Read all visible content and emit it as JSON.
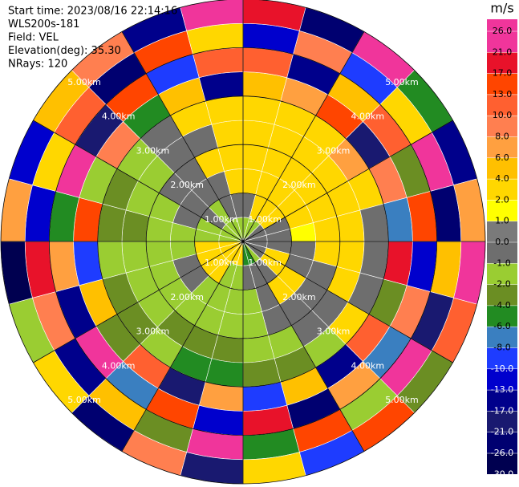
{
  "chart_data": {
    "type": "ppi",
    "info_lines": [
      "Start time: 2023/08/16 22:14:16",
      "WLS200s-181",
      "Field: VEL",
      "Elevation(deg): 35.30",
      "NRays: 120"
    ],
    "rlim": [
      0,
      5
    ],
    "range_rings": [
      {
        "value": 1,
        "label": "1.00km"
      },
      {
        "value": 2,
        "label": "2.00km"
      },
      {
        "value": 3,
        "label": "3.00km"
      },
      {
        "value": 4,
        "label": "4.00km"
      },
      {
        "value": 5,
        "label": "5.00km"
      }
    ],
    "spoke_azimuths": [
      0,
      30,
      60,
      90,
      120,
      150,
      180,
      210,
      240,
      270,
      300,
      330
    ],
    "azimuth_bins": [
      0,
      15,
      30,
      45,
      60,
      75,
      90,
      105,
      120,
      135,
      150,
      165,
      180,
      195,
      210,
      225,
      240,
      255,
      270,
      285,
      300,
      315,
      330,
      345,
      360
    ],
    "range_bins": [
      0,
      0.5,
      1,
      1.5,
      2,
      2.5,
      3,
      3.5,
      4,
      4.5,
      5
    ],
    "values": [
      [
        -1.5,
        -0.5,
        3,
        3,
        3,
        2.5,
        5,
        12,
        -12,
        20
      ],
      [
        -1.5,
        3,
        3,
        3,
        3,
        3,
        7,
        -15,
        9,
        -22
      ],
      [
        -1.5,
        3,
        3,
        3,
        3,
        2.5,
        15,
        5,
        -9,
        25
      ],
      [
        -0.5,
        3,
        3,
        3,
        3,
        6,
        -18,
        11,
        3,
        -5
      ],
      [
        -0.5,
        -0.5,
        3,
        3,
        3,
        3,
        9,
        -3,
        23,
        -14
      ],
      [
        -0.5,
        -0.5,
        1.5,
        3,
        3,
        -0.5,
        -7,
        14,
        -24,
        7
      ],
      [
        -0.5,
        -0.5,
        -0.5,
        3,
        3,
        -0.5,
        18,
        -11,
        5,
        27
      ],
      [
        -0.5,
        3,
        -0.5,
        -0.5,
        3,
        -0.5,
        -3,
        8,
        -19,
        12
      ],
      [
        -0.5,
        3,
        3,
        -0.5,
        -0.5,
        3,
        11,
        -8,
        22,
        -3
      ],
      [
        -1.5,
        -0.5,
        3,
        -0.5,
        -0.5,
        -1.5,
        -15,
        6,
        -1.5,
        16
      ],
      [
        -5,
        -0.5,
        -0.5,
        -0.5,
        -1.5,
        -3,
        4,
        -22,
        13,
        -9
      ],
      [
        -5,
        -0.5,
        -1.5,
        -1.5,
        -1.5,
        -3,
        -9,
        19,
        -6,
        2.5
      ],
      [
        3,
        -1.5,
        -1.5,
        -1.5,
        -3,
        -5,
        7,
        -12,
        24,
        -18
      ],
      [
        3,
        -1.5,
        -1.5,
        -1.5,
        -3,
        -5,
        -20,
        15,
        -4,
        9
      ],
      [
        3,
        3,
        -1.5,
        -1.5,
        -3,
        -1.5,
        12,
        -7,
        5,
        -25
      ],
      [
        3,
        3,
        -0.5,
        -1.5,
        -1.5,
        -3,
        -3,
        21,
        -14,
        3
      ],
      [
        3,
        3,
        -0.5,
        -1.5,
        -1.5,
        -3,
        5,
        -16,
        9,
        -2
      ],
      [
        3,
        3,
        -1.5,
        -1.5,
        -1.5,
        -1.5,
        -10,
        6,
        18,
        -27
      ],
      [
        -1.5,
        -1.5,
        -1.5,
        -1.5,
        -3,
        -3,
        14,
        -5,
        -11,
        7
      ],
      [
        -1.5,
        -1.5,
        -0.5,
        -1.5,
        -1.5,
        -3,
        -2,
        25,
        3,
        -13
      ],
      [
        -1.5,
        -0.5,
        -0.5,
        -0.5,
        -1.5,
        -1.5,
        8,
        -19,
        11,
        4
      ],
      [
        -1.5,
        -1.5,
        -0.5,
        -0.5,
        -0.5,
        -0.5,
        -6,
        16,
        -23,
        9
      ],
      [
        -1.5,
        -0.5,
        -0.5,
        3,
        -0.5,
        3,
        4,
        -9,
        13,
        -15
      ],
      [
        -1.5,
        -0.5,
        3,
        3,
        3,
        3,
        -14,
        10,
        2.5,
        22
      ]
    ],
    "colorbar": {
      "label": "m/s",
      "ticks": [
        {
          "value": 26,
          "label": "26.0"
        },
        {
          "value": 21,
          "label": "21.0"
        },
        {
          "value": 17,
          "label": "17.0"
        },
        {
          "value": 13,
          "label": "13.0"
        },
        {
          "value": 10,
          "label": "10.0"
        },
        {
          "value": 8,
          "label": "8.0"
        },
        {
          "value": 6,
          "label": "6.0"
        },
        {
          "value": 4,
          "label": "4.0"
        },
        {
          "value": 2,
          "label": "2.0"
        },
        {
          "value": 1,
          "label": "1.0"
        },
        {
          "value": 0,
          "label": "0.0"
        },
        {
          "value": -1,
          "label": "-1.0"
        },
        {
          "value": -2,
          "label": "-2.0"
        },
        {
          "value": -4,
          "label": "-4.0"
        },
        {
          "value": -6,
          "label": "-6.0"
        },
        {
          "value": -8,
          "label": "-8.0"
        },
        {
          "value": -10,
          "label": "-10.0"
        },
        {
          "value": -13,
          "label": "-13.0"
        },
        {
          "value": -17,
          "label": "-17.0"
        },
        {
          "value": -21,
          "label": "-21.0"
        },
        {
          "value": -26,
          "label": "-26.0"
        },
        {
          "value": -30,
          "label": "-30.0"
        }
      ],
      "colors": [
        "#f0359b",
        "#e8122a",
        "#ff4500",
        "#ff6030",
        "#ff7f50",
        "#ffa040",
        "#ffc000",
        "#ffd700",
        "#ffff00",
        "#7a7a7a",
        "#6e6e6e",
        "#9acd32",
        "#6b8e23",
        "#228b22",
        "#3a7fc0",
        "#1e3cff",
        "#0000cd",
        "#00008b",
        "#191970",
        "#000070",
        "#000050"
      ]
    }
  }
}
